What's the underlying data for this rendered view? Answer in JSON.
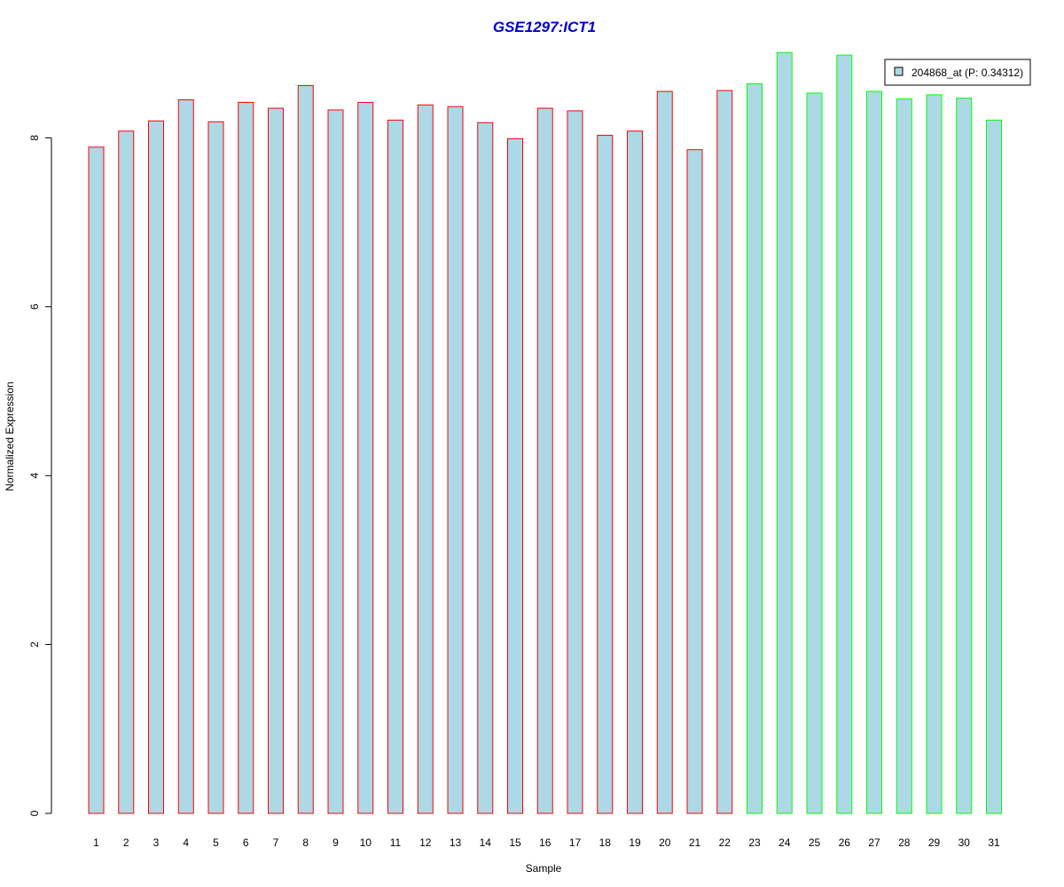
{
  "chart_data": {
    "type": "bar",
    "title": "GSE1297:ICT1",
    "xlabel": "Sample",
    "ylabel": "Normalized Expression",
    "ylim": [
      0,
      9
    ],
    "yticks": [
      0,
      2,
      4,
      6,
      8
    ],
    "grid": false,
    "legend_position": "top-right",
    "categories": [
      "1",
      "2",
      "3",
      "4",
      "5",
      "6",
      "7",
      "8",
      "9",
      "10",
      "11",
      "12",
      "13",
      "14",
      "15",
      "16",
      "17",
      "18",
      "19",
      "20",
      "21",
      "22",
      "23",
      "24",
      "25",
      "26",
      "27",
      "28",
      "29",
      "30",
      "31"
    ],
    "series": [
      {
        "name": "204868_at (P: 0.34312)",
        "values": [
          7.89,
          8.08,
          8.2,
          8.45,
          8.19,
          8.42,
          8.35,
          8.62,
          8.33,
          8.42,
          8.21,
          8.39,
          8.37,
          8.18,
          7.99,
          8.35,
          8.32,
          8.03,
          8.08,
          8.55,
          7.86,
          8.56,
          8.64,
          9.01,
          8.53,
          8.98,
          8.55,
          8.46,
          8.51,
          8.47,
          8.21
        ]
      }
    ],
    "group_split_after": 22,
    "colors": {
      "fill": "#add8e6",
      "group1_border": "#ff0000",
      "group2_border": "#00ff00",
      "title": "#0000cc"
    }
  }
}
